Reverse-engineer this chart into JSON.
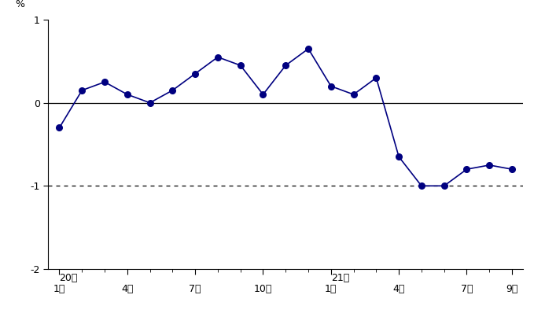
{
  "values": [
    -0.3,
    0.15,
    0.25,
    0.1,
    0.0,
    0.15,
    0.35,
    0.55,
    0.45,
    0.1,
    0.45,
    0.65,
    0.2,
    0.1,
    0.3,
    -0.65,
    -1.0,
    -1.0,
    -0.8,
    -0.75,
    -0.8
  ],
  "line_color": "#000080",
  "marker_color": "#000080",
  "background_color": "#ffffff",
  "ylim": [
    -2,
    1
  ],
  "yticks": [
    -2,
    -1,
    0,
    1
  ],
  "ylabel": "%",
  "dashed_line_y": -1,
  "tick_positions": [
    0,
    3,
    6,
    9,
    12,
    15,
    18,
    20
  ],
  "tick_labels_month": [
    "1月",
    "4月",
    "7月",
    "10月",
    "1月",
    "4月",
    "7月",
    "9月"
  ],
  "tick_labels_year": [
    "20年",
    "",
    "",
    "",
    "21年",
    "",
    "",
    ""
  ],
  "axis_fontsize": 9
}
